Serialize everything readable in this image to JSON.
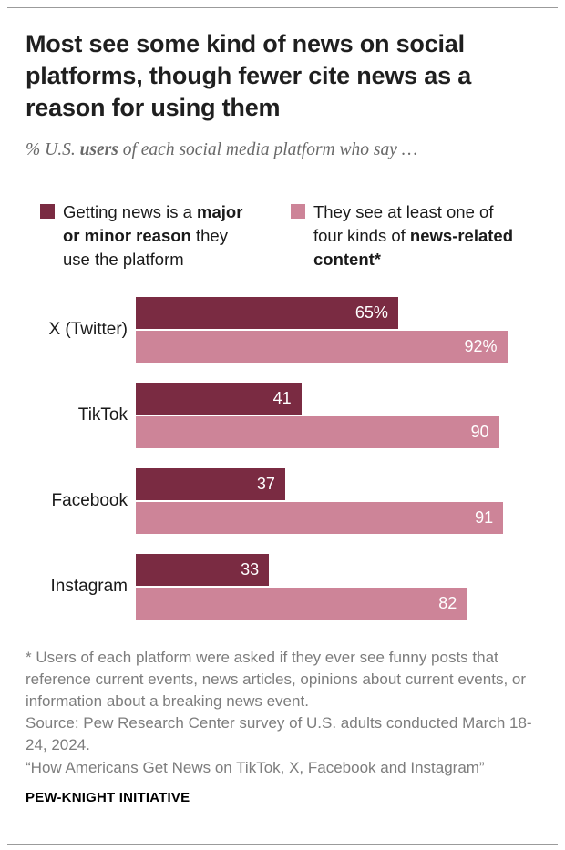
{
  "header": {
    "title": "Most see some kind of news on social platforms, though fewer cite news as a reason for using them",
    "subtitle_pre": "% U.S. ",
    "subtitle_bold": "users",
    "subtitle_post": " of each social media platform who say …"
  },
  "legend": {
    "reason": {
      "pre": "Getting news is a ",
      "bold": "major or minor reason",
      "post": " they use the platform"
    },
    "content": {
      "pre": "They see at least one of four kinds of ",
      "bold": "news-related content*",
      "post": ""
    }
  },
  "chart_data": {
    "type": "bar",
    "orientation": "horizontal",
    "title": "Most see some kind of news on social platforms, though fewer cite news as a reason for using them",
    "subtitle": "% U.S. users of each social media platform who say …",
    "categories": [
      "X (Twitter)",
      "TikTok",
      "Facebook",
      "Instagram"
    ],
    "series": [
      {
        "name": "Getting news is a major or minor reason they use the platform",
        "color": "#7a2b42",
        "values": [
          65,
          41,
          37,
          33
        ],
        "value_labels": [
          "65%",
          "41",
          "37",
          "33"
        ]
      },
      {
        "name": "They see at least one of four kinds of news-related content",
        "color": "#cd8498",
        "values": [
          92,
          90,
          91,
          82
        ],
        "value_labels": [
          "92%",
          "90",
          "91",
          "82"
        ]
      }
    ],
    "xlim": [
      0,
      100
    ],
    "grid": false,
    "legend_position": "top",
    "value_label_color": "#ffffff"
  },
  "notes": {
    "footnote": "* Users of each platform were asked if they ever see funny posts that reference current events, news articles, opinions about current events, or information about a breaking news event.",
    "source": "Source: Pew Research Center survey of U.S. adults conducted March 18-24, 2024.",
    "report": "“How Americans Get News on TikTok, X, Facebook and Instagram”",
    "brand": "PEW-KNIGHT INITIATIVE"
  },
  "colors": {
    "bar_dark": "#7a2b42",
    "bar_pink": "#cd8498",
    "text_primary": "#1a1a1a",
    "text_muted": "#7d7d7d",
    "rule": "#9b9b9b"
  }
}
